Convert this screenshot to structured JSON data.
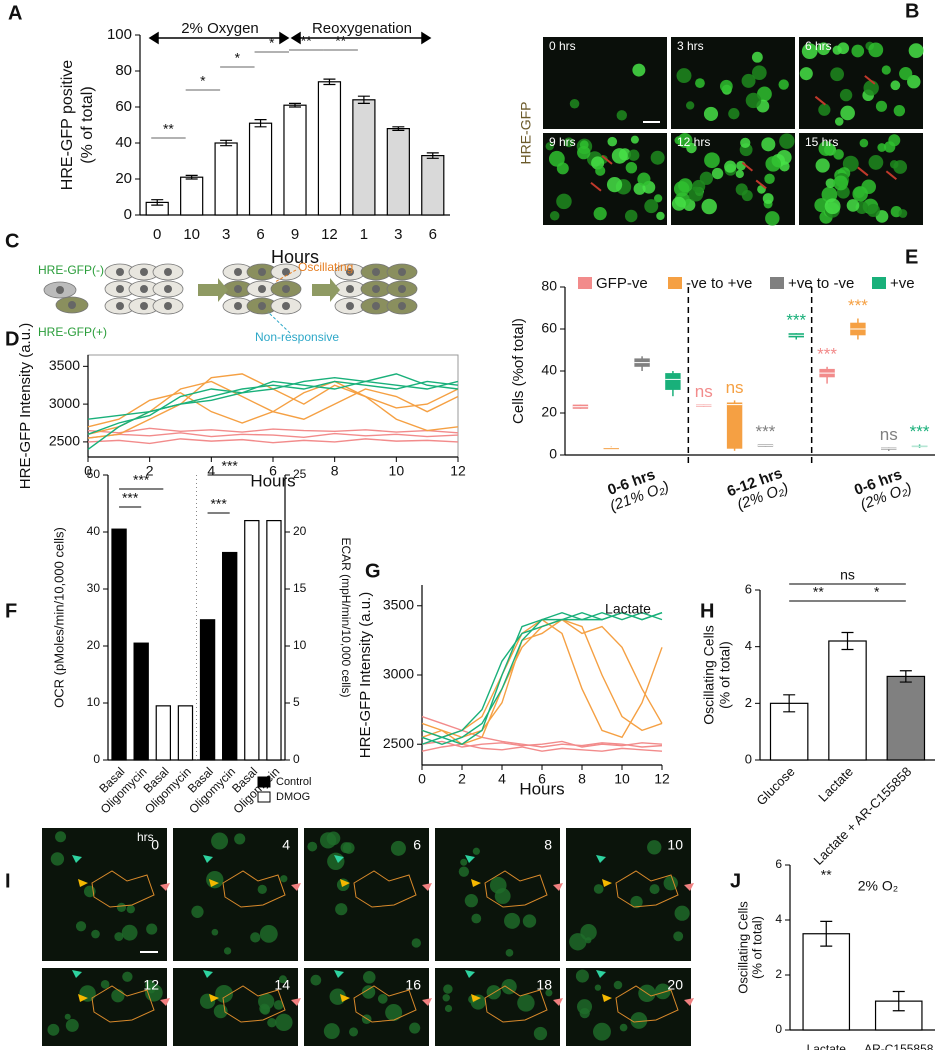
{
  "panel_labels": [
    "A",
    "B",
    "C",
    "D",
    "E",
    "F",
    "G",
    "H",
    "I",
    "J"
  ],
  "panel_b": {
    "ylabel": "HRE-GFP",
    "frames": [
      "0 hrs",
      "3 hrs",
      "6 hrs",
      "9 hrs",
      "12 hrs",
      "15 hrs"
    ]
  },
  "panel_c": {
    "labels": [
      "HRE-GFP(-)",
      "HRE-GFP(+)",
      "Oscillating",
      "Non-responsive"
    ]
  },
  "panel_i": {
    "unit": "hrs",
    "frames": [
      "0",
      "4",
      "6",
      "8",
      "10",
      "12",
      "14",
      "16",
      "18",
      "20"
    ]
  },
  "chart_data": [
    {
      "type": "bar",
      "categories": [
        "0",
        "10",
        "3",
        "6",
        "9",
        "12",
        "1",
        "3",
        "6"
      ],
      "values": [
        7,
        21,
        40,
        51,
        61,
        74,
        64,
        48,
        33
      ],
      "errors": [
        1.5,
        1,
        1.5,
        2,
        1,
        1.5,
        2,
        1,
        1.5
      ],
      "colors": [
        "#ffffff",
        "#ffffff",
        "#ffffff",
        "#ffffff",
        "#ffffff",
        "#ffffff",
        "#d9d9d9",
        "#d9d9d9",
        "#d9d9d9"
      ],
      "ylabel": [
        "HRE-GFP positive",
        "(% of total)"
      ],
      "xlabel": "Hours",
      "ylim": [
        0,
        100
      ],
      "yticks": [
        0,
        20,
        40,
        60,
        80,
        100
      ],
      "annotations": [
        "2% Oxygen",
        "Reoxygenation",
        "**",
        "*",
        "*",
        "*",
        "**",
        "**"
      ]
    },
    {
      "type": "line",
      "x": [
        0,
        1,
        2,
        3,
        4,
        5,
        6,
        7,
        8,
        9,
        10,
        11,
        12
      ],
      "xlim": [
        0,
        12
      ],
      "xticks": [
        0,
        2,
        4,
        6,
        8,
        10,
        12
      ],
      "ylim": [
        2300,
        3650
      ],
      "yticks": [
        2500,
        3000,
        3500
      ],
      "ylabel": [
        "HRE-GFP Intensity (a.u.)"
      ],
      "xlabel": "Hours",
      "series": [
        {
          "color": "#f28b8b",
          "values": [
            2550,
            2600,
            2580,
            2620,
            2570,
            2600,
            2590,
            2560,
            2610,
            2580,
            2600,
            2570,
            2590
          ]
        },
        {
          "color": "#f28b8b",
          "values": [
            2500,
            2520,
            2480,
            2540,
            2510,
            2530,
            2490,
            2520,
            2500,
            2540,
            2510,
            2520,
            2500
          ]
        },
        {
          "color": "#f28b8b",
          "values": [
            2650,
            2620,
            2680,
            2640,
            2660,
            2630,
            2670,
            2650,
            2640,
            2660,
            2630,
            2650,
            2620
          ]
        },
        {
          "color": "#f5a043",
          "values": [
            2600,
            2700,
            2900,
            3200,
            3300,
            3100,
            2900,
            2800,
            3000,
            3200,
            3100,
            2900,
            3100
          ]
        },
        {
          "color": "#f5a043",
          "values": [
            2550,
            2600,
            2800,
            3000,
            3350,
            3400,
            3200,
            3000,
            3250,
            3100,
            2800,
            2650,
            2700
          ]
        },
        {
          "color": "#f5a043",
          "values": [
            2700,
            2800,
            3050,
            3150,
            2900,
            2750,
            2900,
            3150,
            3300,
            3100,
            2950,
            3000,
            3200
          ]
        },
        {
          "color": "#19b07a",
          "values": [
            2400,
            2700,
            2900,
            3000,
            3100,
            3200,
            3250,
            3200,
            3300,
            3250,
            3200,
            3300,
            3250
          ]
        },
        {
          "color": "#19b07a",
          "values": [
            2800,
            2850,
            2900,
            3000,
            3050,
            3150,
            3300,
            3250,
            3200,
            3300,
            3400,
            3250,
            3200
          ]
        },
        {
          "color": "#19b07a",
          "values": [
            2600,
            2750,
            2850,
            3100,
            3200,
            3150,
            3200,
            3300,
            3350,
            3300,
            3250,
            3200,
            3300
          ]
        }
      ]
    },
    {
      "type": "box",
      "group_labels": [
        [
          "0-6 hrs",
          "(21% O₂)"
        ],
        [
          "6-12 hrs",
          "(2% O₂)"
        ],
        [
          "0-6 hrs",
          "(2% O₂)"
        ]
      ],
      "ylabel": [
        "Cells  (%of total)"
      ],
      "ylim": [
        0,
        80
      ],
      "yticks": [
        0,
        20,
        40,
        60,
        80
      ],
      "series": [
        {
          "name": "GFP-ve",
          "color": "#f28b8b",
          "labels": [
            null,
            "ns",
            "***"
          ],
          "boxes": [
            {
              "min": 22,
              "q1": 22,
              "median": 23,
              "q3": 24,
              "max": 24
            },
            {
              "min": 23,
              "q1": 23,
              "median": 23.5,
              "q3": 24,
              "max": 24
            },
            {
              "min": 34,
              "q1": 37,
              "median": 39,
              "q3": 41,
              "max": 42
            }
          ]
        },
        {
          "name": "-ve to +ve",
          "color": "#f5a043",
          "labels": [
            null,
            "ns",
            "***"
          ],
          "boxes": [
            {
              "min": 3,
              "q1": 3,
              "median": 3.5,
              "q3": 3.5,
              "max": 4
            },
            {
              "min": 2,
              "q1": 3,
              "median": 24,
              "q3": 25,
              "max": 26
            },
            {
              "min": 55,
              "q1": 57,
              "median": 60,
              "q3": 63,
              "max": 65
            }
          ]
        },
        {
          "name": "+ve to -ve",
          "color": "#808080",
          "labels": [
            null,
            "***",
            "ns"
          ],
          "boxes": [
            {
              "min": 40,
              "q1": 42,
              "median": 44,
              "q3": 46,
              "max": 47
            },
            {
              "min": 4,
              "q1": 4,
              "median": 4.5,
              "q3": 5,
              "max": 5
            },
            {
              "min": 2,
              "q1": 2.5,
              "median": 3,
              "q3": 3.5,
              "max": 3.5
            }
          ]
        },
        {
          "name": "+ve",
          "color": "#19b07a",
          "labels": [
            null,
            "***",
            "***"
          ],
          "boxes": [
            {
              "min": 28,
              "q1": 31,
              "median": 36,
              "q3": 39,
              "max": 40
            },
            {
              "min": 55,
              "q1": 56,
              "median": 57,
              "q3": 58,
              "max": 58
            },
            {
              "min": 3.5,
              "q1": 4,
              "median": 4.2,
              "q3": 4.5,
              "max": 5
            }
          ]
        }
      ]
    },
    {
      "type": "bar",
      "categories": [
        "Basal",
        "Oligomycin",
        "Basal",
        "Oligomycin",
        "Basal",
        "Oligomycin",
        "Basal",
        "Oligomycin"
      ],
      "ylabel": [
        "OCR (pMoles/min/10,000 cells)"
      ],
      "y2label": [
        "ECAR (mpH/min/10,000 cells)"
      ],
      "ylim": [
        0,
        50
      ],
      "yticks": [
        0,
        10,
        20,
        30,
        40,
        50
      ],
      "y2lim": [
        0,
        25
      ],
      "y2ticks": [
        0,
        5,
        10,
        15,
        20,
        25
      ],
      "xtick_rotation": 45,
      "legend": [
        {
          "label": "Control",
          "color": "#000000"
        },
        {
          "label": "DMOG",
          "color": "#ffffff"
        }
      ],
      "series": [
        {
          "color": "#000000",
          "values": [
            40.5,
            20.5,
            null,
            null,
            null,
            null,
            null,
            null
          ]
        },
        {
          "color": "#ffffff",
          "values": [
            null,
            null,
            9.5,
            9.5,
            null,
            null,
            null,
            null
          ]
        },
        {
          "color": "#000000",
          "axis": "y2",
          "values": [
            null,
            null,
            null,
            null,
            12.3,
            18.2,
            null,
            null
          ]
        },
        {
          "color": "#ffffff",
          "axis": "y2",
          "values": [
            null,
            null,
            null,
            null,
            null,
            null,
            21,
            21
          ]
        }
      ],
      "annotations": [
        "***",
        "***",
        "***",
        "***"
      ]
    },
    {
      "type": "line",
      "x": [
        0,
        1,
        2,
        3,
        4,
        5,
        6,
        7,
        8,
        9,
        10,
        11,
        12
      ],
      "xlim": [
        0,
        12
      ],
      "xticks": [
        0,
        2,
        4,
        6,
        8,
        10,
        12
      ],
      "ylim": [
        2350,
        3650
      ],
      "yticks": [
        2500,
        3000,
        3500
      ],
      "ylabel": [
        "HRE-GFP Intensity (a.u.)"
      ],
      "xlabel": "Hours",
      "annotations": [
        "Lactate"
      ],
      "series": [
        {
          "color": "#f28b8b",
          "values": [
            2500,
            2520,
            2480,
            2500,
            2510,
            2490,
            2500,
            2520,
            2480,
            2500,
            2490,
            2510,
            2500
          ]
        },
        {
          "color": "#f28b8b",
          "values": [
            2700,
            2650,
            2600,
            2550,
            2520,
            2500,
            2480,
            2500,
            2490,
            2510,
            2500,
            2480,
            2490
          ]
        },
        {
          "color": "#f28b8b",
          "values": [
            2450,
            2480,
            2500,
            2470,
            2460,
            2480,
            2450,
            2470,
            2460,
            2450,
            2470,
            2460,
            2450
          ]
        },
        {
          "color": "#f5a043",
          "values": [
            2600,
            2550,
            2600,
            2700,
            3000,
            3300,
            3400,
            3300,
            2900,
            2600,
            2550,
            2800,
            3200
          ]
        },
        {
          "color": "#f5a043",
          "values": [
            2550,
            2600,
            2500,
            2550,
            2900,
            3200,
            3350,
            3400,
            3350,
            3000,
            2700,
            2600,
            2650
          ]
        },
        {
          "color": "#f5a043",
          "values": [
            2650,
            2600,
            2550,
            2600,
            2800,
            3250,
            3300,
            3400,
            3300,
            3350,
            3200,
            2900,
            2650
          ]
        },
        {
          "color": "#19b07a",
          "values": [
            2550,
            2500,
            2550,
            2650,
            2900,
            3250,
            3400,
            3400,
            3450,
            3400,
            3450,
            3400,
            3450
          ]
        },
        {
          "color": "#19b07a",
          "values": [
            2500,
            2550,
            2600,
            2750,
            3100,
            3300,
            3350,
            3400,
            3400,
            3450,
            3400,
            3450,
            3400
          ]
        },
        {
          "color": "#19b07a",
          "values": [
            2600,
            2550,
            2500,
            2600,
            3000,
            3350,
            3400,
            3450,
            3400,
            3400,
            3450,
            3400,
            3450
          ]
        }
      ]
    },
    {
      "type": "bar",
      "categories": [
        "Glucose",
        "Lactate",
        "Lactate + AR-C155858"
      ],
      "values": [
        2.0,
        4.2,
        2.95
      ],
      "errors": [
        0.3,
        0.3,
        0.2
      ],
      "colors": [
        "#ffffff",
        "#ffffff",
        "#808080"
      ],
      "ylabel": [
        "Oscillating  Cells",
        "(% of total)"
      ],
      "ylim": [
        0,
        6
      ],
      "yticks": [
        0,
        2,
        4,
        6
      ],
      "xtick_rotation": 45,
      "annotations": [
        "ns",
        "**",
        "*"
      ]
    },
    {
      "type": "bar",
      "categories": [
        "Lactate",
        "AR-C155858"
      ],
      "values": [
        3.5,
        1.05
      ],
      "errors": [
        0.45,
        0.35
      ],
      "colors": [
        "#ffffff",
        "#ffffff"
      ],
      "ylabel": [
        "Oscillating  Cells",
        "(% of total)"
      ],
      "ylim": [
        0,
        6
      ],
      "yticks": [
        0,
        2,
        4,
        6
      ],
      "annotations": [
        "**",
        "2% O₂"
      ]
    }
  ]
}
